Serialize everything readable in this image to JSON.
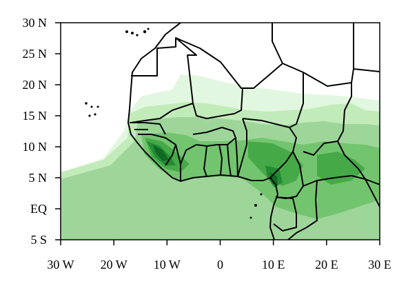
{
  "map": {
    "extent": {
      "lon_min": -30,
      "lon_max": 30,
      "lat_min": -5,
      "lat_max": 30
    },
    "x_ticks": [
      {
        "value": -30,
        "label": "30 W"
      },
      {
        "value": -20,
        "label": "20 W"
      },
      {
        "value": -10,
        "label": "10 W"
      },
      {
        "value": 0,
        "label": "0"
      },
      {
        "value": 10,
        "label": "10 E"
      },
      {
        "value": 20,
        "label": "20 E"
      },
      {
        "value": 30,
        "label": "30 E"
      }
    ],
    "y_ticks": [
      {
        "value": -5,
        "label": "5 S"
      },
      {
        "value": 0,
        "label": "EQ"
      },
      {
        "value": 5,
        "label": "5 N"
      },
      {
        "value": 10,
        "label": "10 N"
      },
      {
        "value": 15,
        "label": "15 N"
      },
      {
        "value": 20,
        "label": "20 N"
      },
      {
        "value": 25,
        "label": "25 N"
      },
      {
        "value": 30,
        "label": "30 N"
      }
    ],
    "shading_colors": [
      "#e2f7df",
      "#c2ebba",
      "#9ed69a",
      "#73c46f",
      "#46a948",
      "#238b34",
      "#0e6a22"
    ],
    "frame_color": "#000000",
    "border_color": "#000000"
  }
}
